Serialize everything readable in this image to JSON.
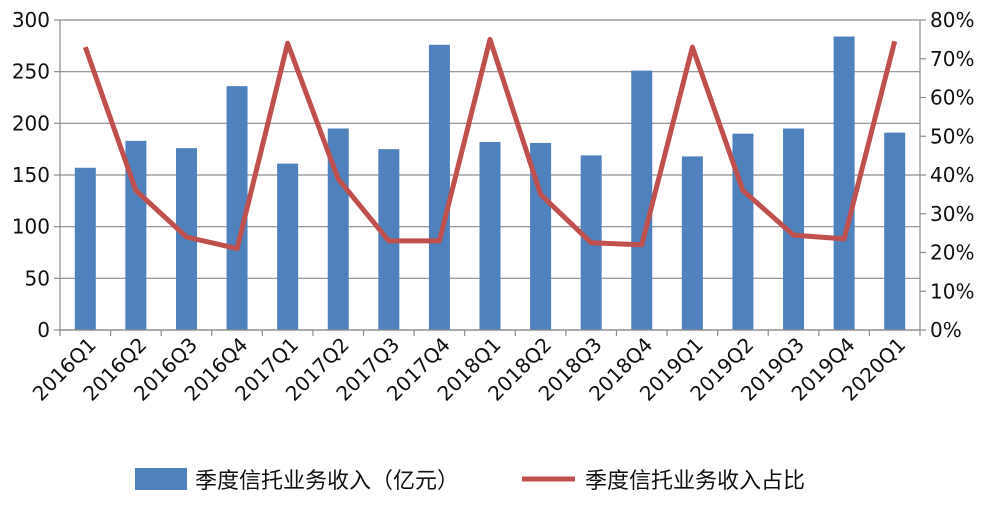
{
  "chart_data": {
    "type": "bar+line",
    "categories": [
      "2016Q1",
      "2016Q2",
      "2016Q3",
      "2016Q4",
      "2017Q1",
      "2017Q2",
      "2017Q3",
      "2017Q4",
      "2018Q1",
      "2018Q2",
      "2018Q3",
      "2018Q4",
      "2019Q1",
      "2019Q2",
      "2019Q3",
      "2019Q4",
      "2020Q1"
    ],
    "series": [
      {
        "name": "季度信托业务收入（亿元）",
        "type": "bar",
        "axis": "left",
        "color": "#4F81BD",
        "values": [
          157,
          183,
          176,
          236,
          161,
          195,
          175,
          276,
          182,
          181,
          169,
          251,
          168,
          190,
          195,
          284,
          191
        ]
      },
      {
        "name": "季度信托业务收入占比",
        "type": "line",
        "axis": "right",
        "color": "#C0504D",
        "values": [
          0.73,
          0.36,
          0.24,
          0.21,
          0.74,
          0.39,
          0.23,
          0.23,
          0.75,
          0.35,
          0.225,
          0.22,
          0.73,
          0.36,
          0.245,
          0.235,
          0.745
        ]
      }
    ],
    "y_left": {
      "min": 0,
      "max": 300,
      "step": 50,
      "tick_labels": [
        "0",
        "50",
        "100",
        "150",
        "200",
        "250",
        "300"
      ]
    },
    "y_right": {
      "min": 0,
      "max": 0.8,
      "step": 0.1,
      "tick_labels": [
        "0%",
        "10%",
        "20%",
        "30%",
        "40%",
        "50%",
        "60%",
        "70%",
        "80%"
      ]
    },
    "grid": true,
    "legend_position": "bottom",
    "title": "",
    "xlabel": "",
    "ylabel": ""
  }
}
